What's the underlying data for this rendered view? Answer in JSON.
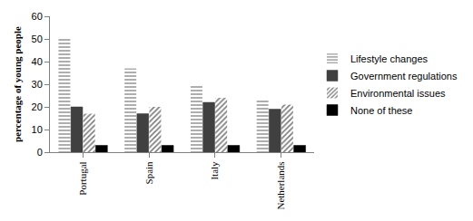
{
  "chart_data": {
    "type": "bar",
    "categories": [
      "Portugal",
      "Spain",
      "Italy",
      "Netherlands"
    ],
    "series": [
      {
        "name": "Lifestyle changes",
        "color": "#9a9a9a",
        "values": [
          50,
          37,
          30,
          23
        ]
      },
      {
        "name": "Government regulations",
        "color": "#404040",
        "values": [
          20,
          17,
          22,
          19
        ]
      },
      {
        "name": "Environmental issues",
        "color": "#7a7a7a",
        "values": [
          17,
          20,
          24,
          21
        ]
      },
      {
        "name": "None of these",
        "color": "#000000",
        "values": [
          3,
          3,
          3,
          3
        ]
      }
    ],
    "y_label": "percentage of young people",
    "ylim": [
      0,
      60
    ],
    "yticks": [
      0,
      10,
      20,
      30,
      40,
      50,
      60
    ],
    "grid": false,
    "legend": "right"
  }
}
